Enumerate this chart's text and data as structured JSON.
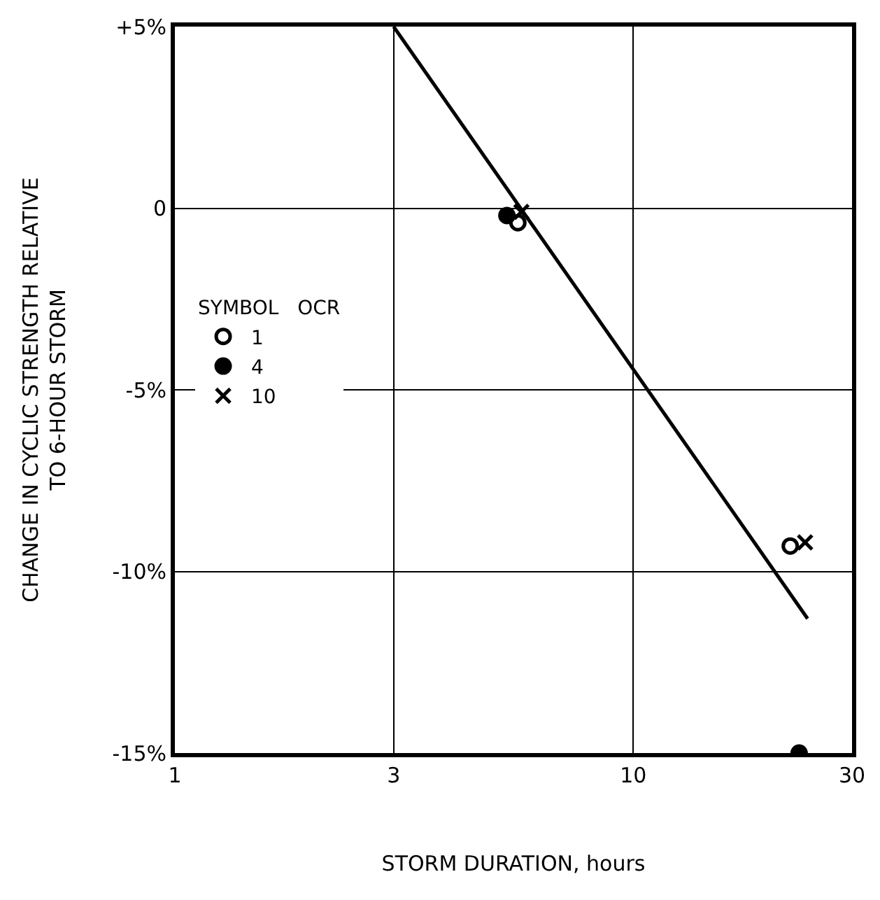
{
  "chart_data": {
    "type": "scatter",
    "xlabel": "STORM DURATION, hours",
    "ylabel": "CHANGE IN CYCLIC STRENGTH RELATIVE\nTO 6-HOUR STORM",
    "legend_title": "SYMBOL   OCR",
    "log": "x",
    "xlim": [
      1,
      30
    ],
    "xticks": [
      1,
      3,
      10,
      30
    ],
    "ylim": [
      -15,
      5
    ],
    "yticks": [
      {
        "value": 5,
        "label": "+5%"
      },
      0,
      {
        "value": -5,
        "label": "-5%"
      },
      {
        "value": -10,
        "label": "-10%"
      },
      {
        "value": -15,
        "label": "-15%"
      }
    ],
    "grid": true,
    "legend": "left",
    "series": [
      {
        "name": "1",
        "color": "#000000",
        "marker": "circle-open",
        "x": [
          5.6,
          22
        ],
        "values": [
          -0.4,
          -9.3
        ]
      },
      {
        "name": "4",
        "color": "#000000",
        "marker": "circle",
        "x": [
          5.3,
          23
        ],
        "values": [
          -0.2,
          -15
        ]
      },
      {
        "name": "10",
        "color": "#000000",
        "marker": "cross",
        "x": [
          5.7,
          23.7
        ],
        "values": [
          -0.1,
          -9.2
        ]
      },
      {
        "type": "line",
        "color": "#000000",
        "marker": "none",
        "line_style": "solid",
        "x": [
          3,
          24
        ],
        "values": [
          5,
          -11.3
        ]
      }
    ]
  }
}
